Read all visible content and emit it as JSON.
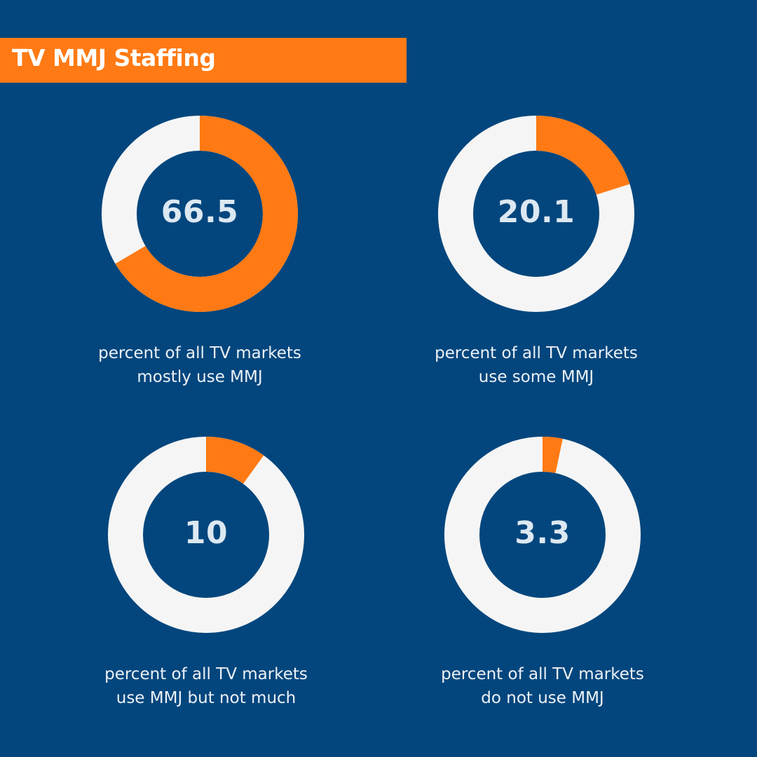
{
  "title": "TV MMJ Staffing",
  "colors": {
    "background": "#03467d",
    "accent": "#ff7a14",
    "ring": "#f5f5f5",
    "value_text": "#dce8f2",
    "caption_text": "#ecf1f6"
  },
  "chart_data": [
    {
      "type": "pie",
      "value": 66.5,
      "value_label": "66.5",
      "caption_lines": [
        "percent of all TV markets",
        "mostly use MMJ"
      ]
    },
    {
      "type": "pie",
      "value": 20.1,
      "value_label": "20.1",
      "caption_lines": [
        "percent of all TV markets",
        "use some MMJ"
      ]
    },
    {
      "type": "pie",
      "value": 10,
      "value_label": "10",
      "caption_lines": [
        "percent of all TV markets",
        "use MMJ but not much"
      ]
    },
    {
      "type": "pie",
      "value": 3.3,
      "value_label": "3.3",
      "caption_lines": [
        "percent of all TV markets",
        "do not use MMJ"
      ]
    }
  ]
}
